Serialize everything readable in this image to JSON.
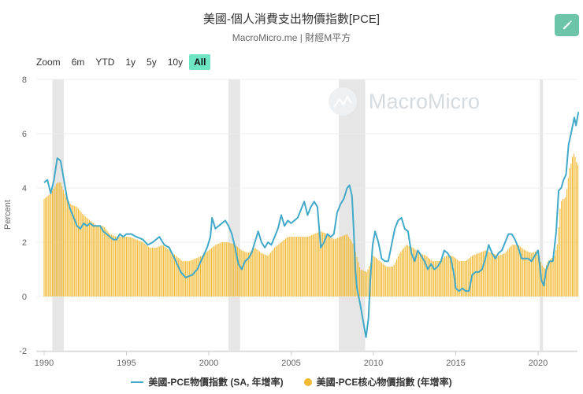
{
  "header": {
    "title": "美國-個人消費支出物價指數[PCE]",
    "subtitle": "MacroMicro.me | 財經M平方",
    "watermark": "MacroMicro"
  },
  "toolbar": {
    "zoom_label": "Zoom",
    "ranges": [
      "6m",
      "YTD",
      "1y",
      "5y",
      "10y",
      "All"
    ],
    "active_range": "All",
    "edit_icon": "pencil-icon"
  },
  "colors": {
    "pce_line": "#42a9c9",
    "core_bars": "#f2b933",
    "recession_band": "#e6e6e6",
    "active_button": "#6ee6c4",
    "edit_button": "#6cc5a8"
  },
  "chart_data": {
    "type": "line",
    "ylabel": "Percent",
    "xlabel": "",
    "xlim": [
      1989.8,
      2022.8
    ],
    "ylim": [
      -2,
      8
    ],
    "y_ticks": [
      -2,
      0,
      2,
      4,
      6,
      8
    ],
    "x_ticks": [
      1990,
      1995,
      2000,
      2005,
      2010,
      2015,
      2020
    ],
    "grid": true,
    "legend_position": "bottom",
    "recession_bands": [
      [
        1990.5,
        1991.2
      ],
      [
        2001.2,
        2001.9
      ],
      [
        2007.9,
        2009.5
      ],
      [
        2020.1,
        2020.3
      ]
    ],
    "series": [
      {
        "name": "美國-PCE物價指數 (SA, 年增率)",
        "type": "line",
        "points": [
          [
            1990.0,
            4.2
          ],
          [
            1990.2,
            4.3
          ],
          [
            1990.4,
            3.8
          ],
          [
            1990.6,
            4.3
          ],
          [
            1990.8,
            5.1
          ],
          [
            1991.0,
            5.0
          ],
          [
            1991.2,
            4.3
          ],
          [
            1991.4,
            3.6
          ],
          [
            1991.6,
            3.2
          ],
          [
            1991.8,
            2.9
          ],
          [
            1992.0,
            2.6
          ],
          [
            1992.2,
            2.5
          ],
          [
            1992.4,
            2.7
          ],
          [
            1992.6,
            2.6
          ],
          [
            1992.8,
            2.7
          ],
          [
            1993.0,
            2.6
          ],
          [
            1993.2,
            2.6
          ],
          [
            1993.4,
            2.6
          ],
          [
            1993.6,
            2.4
          ],
          [
            1993.8,
            2.3
          ],
          [
            1994.0,
            2.2
          ],
          [
            1994.2,
            2.1
          ],
          [
            1994.4,
            2.1
          ],
          [
            1994.6,
            2.3
          ],
          [
            1994.8,
            2.2
          ],
          [
            1995.0,
            2.3
          ],
          [
            1995.3,
            2.3
          ],
          [
            1995.6,
            2.2
          ],
          [
            1996.0,
            2.1
          ],
          [
            1996.3,
            1.9
          ],
          [
            1996.6,
            2.0
          ],
          [
            1997.0,
            2.2
          ],
          [
            1997.3,
            1.9
          ],
          [
            1997.6,
            1.8
          ],
          [
            1998.0,
            1.3
          ],
          [
            1998.3,
            0.9
          ],
          [
            1998.6,
            0.7
          ],
          [
            1999.0,
            0.8
          ],
          [
            1999.3,
            1.0
          ],
          [
            1999.6,
            1.4
          ],
          [
            1999.9,
            1.8
          ],
          [
            2000.1,
            2.2
          ],
          [
            2000.2,
            2.9
          ],
          [
            2000.4,
            2.5
          ],
          [
            2000.6,
            2.6
          ],
          [
            2000.8,
            2.7
          ],
          [
            2001.0,
            2.8
          ],
          [
            2001.2,
            2.6
          ],
          [
            2001.4,
            2.3
          ],
          [
            2001.6,
            1.8
          ],
          [
            2001.8,
            1.2
          ],
          [
            2002.0,
            1.0
          ],
          [
            2002.2,
            1.3
          ],
          [
            2002.4,
            1.4
          ],
          [
            2002.6,
            1.6
          ],
          [
            2002.8,
            2.0
          ],
          [
            2003.0,
            2.4
          ],
          [
            2003.2,
            2.0
          ],
          [
            2003.4,
            1.8
          ],
          [
            2003.6,
            2.0
          ],
          [
            2003.8,
            1.9
          ],
          [
            2004.0,
            2.2
          ],
          [
            2004.2,
            2.5
          ],
          [
            2004.4,
            3.0
          ],
          [
            2004.6,
            2.6
          ],
          [
            2004.8,
            2.8
          ],
          [
            2005.0,
            2.7
          ],
          [
            2005.2,
            2.8
          ],
          [
            2005.4,
            2.9
          ],
          [
            2005.6,
            3.2
          ],
          [
            2005.8,
            3.5
          ],
          [
            2006.0,
            3.0
          ],
          [
            2006.2,
            3.3
          ],
          [
            2006.4,
            3.5
          ],
          [
            2006.6,
            3.3
          ],
          [
            2006.8,
            1.8
          ],
          [
            2007.0,
            2.0
          ],
          [
            2007.2,
            2.3
          ],
          [
            2007.4,
            2.2
          ],
          [
            2007.6,
            2.3
          ],
          [
            2007.8,
            3.1
          ],
          [
            2008.0,
            3.4
          ],
          [
            2008.2,
            3.6
          ],
          [
            2008.4,
            4.0
          ],
          [
            2008.55,
            4.1
          ],
          [
            2008.7,
            3.7
          ],
          [
            2008.8,
            2.5
          ],
          [
            2008.9,
            1.0
          ],
          [
            2009.0,
            0.3
          ],
          [
            2009.2,
            -0.3
          ],
          [
            2009.4,
            -1.0
          ],
          [
            2009.55,
            -1.5
          ],
          [
            2009.7,
            -0.8
          ],
          [
            2009.8,
            0.5
          ],
          [
            2009.95,
            1.9
          ],
          [
            2010.1,
            2.4
          ],
          [
            2010.3,
            2.0
          ],
          [
            2010.5,
            1.4
          ],
          [
            2010.7,
            1.3
          ],
          [
            2010.9,
            1.3
          ],
          [
            2011.1,
            1.9
          ],
          [
            2011.3,
            2.5
          ],
          [
            2011.5,
            2.8
          ],
          [
            2011.7,
            2.9
          ],
          [
            2011.9,
            2.5
          ],
          [
            2012.1,
            2.4
          ],
          [
            2012.3,
            1.6
          ],
          [
            2012.5,
            1.3
          ],
          [
            2012.7,
            1.7
          ],
          [
            2012.9,
            1.5
          ],
          [
            2013.1,
            1.3
          ],
          [
            2013.3,
            1.0
          ],
          [
            2013.5,
            1.2
          ],
          [
            2013.7,
            1.0
          ],
          [
            2013.9,
            1.1
          ],
          [
            2014.1,
            1.3
          ],
          [
            2014.3,
            1.7
          ],
          [
            2014.5,
            1.6
          ],
          [
            2014.7,
            1.4
          ],
          [
            2014.9,
            0.8
          ],
          [
            2015.0,
            0.3
          ],
          [
            2015.2,
            0.2
          ],
          [
            2015.4,
            0.3
          ],
          [
            2015.6,
            0.2
          ],
          [
            2015.8,
            0.2
          ],
          [
            2016.0,
            0.8
          ],
          [
            2016.2,
            0.9
          ],
          [
            2016.4,
            0.9
          ],
          [
            2016.6,
            1.0
          ],
          [
            2016.8,
            1.4
          ],
          [
            2017.0,
            1.9
          ],
          [
            2017.2,
            1.6
          ],
          [
            2017.4,
            1.4
          ],
          [
            2017.6,
            1.6
          ],
          [
            2017.8,
            1.7
          ],
          [
            2018.0,
            2.0
          ],
          [
            2018.2,
            2.3
          ],
          [
            2018.4,
            2.3
          ],
          [
            2018.6,
            2.1
          ],
          [
            2018.8,
            1.8
          ],
          [
            2019.0,
            1.4
          ],
          [
            2019.2,
            1.4
          ],
          [
            2019.4,
            1.4
          ],
          [
            2019.6,
            1.3
          ],
          [
            2019.8,
            1.5
          ],
          [
            2020.0,
            1.7
          ],
          [
            2020.2,
            0.6
          ],
          [
            2020.35,
            0.4
          ],
          [
            2020.5,
            1.0
          ],
          [
            2020.7,
            1.3
          ],
          [
            2020.9,
            1.3
          ],
          [
            2021.1,
            2.4
          ],
          [
            2021.25,
            3.9
          ],
          [
            2021.4,
            4.0
          ],
          [
            2021.55,
            4.3
          ],
          [
            2021.7,
            4.5
          ],
          [
            2021.85,
            5.6
          ],
          [
            2022.0,
            6.0
          ],
          [
            2022.1,
            6.3
          ],
          [
            2022.2,
            6.6
          ],
          [
            2022.3,
            6.3
          ],
          [
            2022.45,
            6.8
          ]
        ]
      },
      {
        "name": "美國-PCE核心物價指數 (年增率)",
        "type": "bar",
        "points": [
          [
            1990.0,
            3.6
          ],
          [
            1990.4,
            3.8
          ],
          [
            1990.8,
            4.2
          ],
          [
            1991.0,
            4.2
          ],
          [
            1991.3,
            3.7
          ],
          [
            1991.6,
            3.4
          ],
          [
            1992.0,
            3.3
          ],
          [
            1992.4,
            3.0
          ],
          [
            1992.8,
            2.8
          ],
          [
            1993.2,
            2.6
          ],
          [
            1993.6,
            2.6
          ],
          [
            1994.0,
            2.3
          ],
          [
            1994.4,
            2.2
          ],
          [
            1994.8,
            2.2
          ],
          [
            1995.2,
            2.2
          ],
          [
            1995.6,
            2.1
          ],
          [
            1996.0,
            2.0
          ],
          [
            1996.4,
            1.8
          ],
          [
            1996.8,
            1.8
          ],
          [
            1997.2,
            1.9
          ],
          [
            1997.6,
            1.7
          ],
          [
            1998.0,
            1.5
          ],
          [
            1998.4,
            1.3
          ],
          [
            1998.8,
            1.3
          ],
          [
            1999.2,
            1.4
          ],
          [
            1999.6,
            1.5
          ],
          [
            2000.0,
            1.7
          ],
          [
            2000.4,
            1.9
          ],
          [
            2000.8,
            2.0
          ],
          [
            2001.2,
            2.0
          ],
          [
            2001.6,
            1.9
          ],
          [
            2002.0,
            1.7
          ],
          [
            2002.4,
            1.6
          ],
          [
            2002.8,
            1.8
          ],
          [
            2003.2,
            1.6
          ],
          [
            2003.6,
            1.5
          ],
          [
            2004.0,
            1.8
          ],
          [
            2004.4,
            2.0
          ],
          [
            2004.8,
            2.2
          ],
          [
            2005.2,
            2.2
          ],
          [
            2005.6,
            2.2
          ],
          [
            2006.0,
            2.2
          ],
          [
            2006.4,
            2.3
          ],
          [
            2006.8,
            2.4
          ],
          [
            2007.2,
            2.3
          ],
          [
            2007.6,
            2.1
          ],
          [
            2008.0,
            2.2
          ],
          [
            2008.4,
            2.3
          ],
          [
            2008.8,
            1.9
          ],
          [
            2009.2,
            1.0
          ],
          [
            2009.6,
            0.9
          ],
          [
            2010.0,
            1.5
          ],
          [
            2010.4,
            1.3
          ],
          [
            2010.8,
            1.1
          ],
          [
            2011.2,
            1.1
          ],
          [
            2011.6,
            1.6
          ],
          [
            2012.0,
            1.9
          ],
          [
            2012.4,
            1.8
          ],
          [
            2012.8,
            1.6
          ],
          [
            2013.2,
            1.5
          ],
          [
            2013.6,
            1.3
          ],
          [
            2014.0,
            1.3
          ],
          [
            2014.4,
            1.5
          ],
          [
            2014.8,
            1.5
          ],
          [
            2015.2,
            1.3
          ],
          [
            2015.6,
            1.3
          ],
          [
            2016.0,
            1.5
          ],
          [
            2016.4,
            1.6
          ],
          [
            2016.8,
            1.7
          ],
          [
            2017.2,
            1.6
          ],
          [
            2017.6,
            1.5
          ],
          [
            2018.0,
            1.6
          ],
          [
            2018.4,
            1.9
          ],
          [
            2018.8,
            1.9
          ],
          [
            2019.2,
            1.7
          ],
          [
            2019.6,
            1.6
          ],
          [
            2020.0,
            1.7
          ],
          [
            2020.2,
            1.2
          ],
          [
            2020.4,
            1.0
          ],
          [
            2020.6,
            1.3
          ],
          [
            2020.8,
            1.4
          ],
          [
            2021.0,
            1.5
          ],
          [
            2021.2,
            2.0
          ],
          [
            2021.3,
            3.1
          ],
          [
            2021.4,
            3.5
          ],
          [
            2021.5,
            3.6
          ],
          [
            2021.6,
            3.6
          ],
          [
            2021.7,
            3.7
          ],
          [
            2021.8,
            4.2
          ],
          [
            2021.9,
            4.7
          ],
          [
            2022.0,
            4.9
          ],
          [
            2022.1,
            5.2
          ],
          [
            2022.2,
            5.3
          ],
          [
            2022.3,
            5.0
          ],
          [
            2022.45,
            4.8
          ]
        ]
      }
    ]
  }
}
